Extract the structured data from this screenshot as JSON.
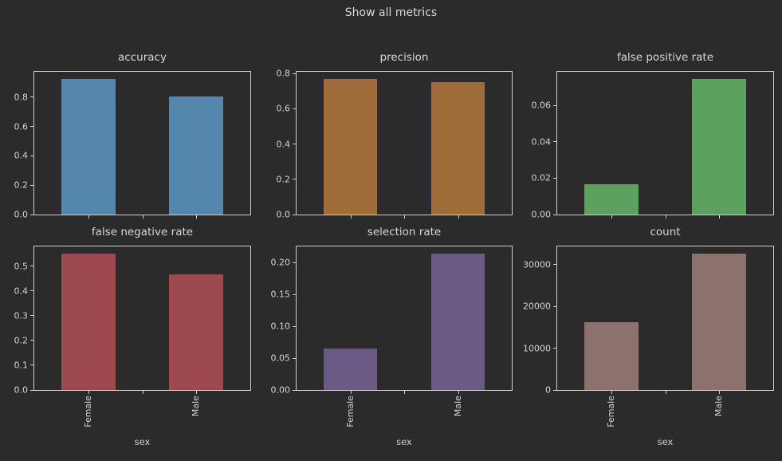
{
  "figure": {
    "title": "Show all metrics",
    "background_color": "#2b2b2b",
    "text_color": "#d2d2d2",
    "spine_color": "#cfcfcf"
  },
  "chart_data": [
    {
      "type": "bar",
      "title": "accuracy",
      "categories": [
        "Female",
        "Male"
      ],
      "values": [
        0.925,
        0.804
      ],
      "bar_color": "#5586ab",
      "ylim": [
        0,
        0.973
      ],
      "ytick_values": [
        0.0,
        0.2,
        0.4,
        0.6,
        0.8
      ],
      "ytick_labels": [
        "0.0",
        "0.2",
        "0.4",
        "0.6",
        "0.8"
      ],
      "xlabel": "",
      "show_x_tick_labels": false,
      "grid": false,
      "legend": "none"
    },
    {
      "type": "bar",
      "title": "precision",
      "categories": [
        "Female",
        "Male"
      ],
      "values": [
        0.77,
        0.753
      ],
      "bar_color": "#a06c3a",
      "ylim": [
        0,
        0.81
      ],
      "ytick_values": [
        0.0,
        0.2,
        0.4,
        0.6,
        0.8
      ],
      "ytick_labels": [
        "0.0",
        "0.2",
        "0.4",
        "0.6",
        "0.8"
      ],
      "xlabel": "",
      "show_x_tick_labels": false,
      "grid": false,
      "legend": "none"
    },
    {
      "type": "bar",
      "title": "false positive rate",
      "categories": [
        "Female",
        "Male"
      ],
      "values": [
        0.0165,
        0.0747
      ],
      "bar_color": "#5aa25d",
      "ylim": [
        0,
        0.0786
      ],
      "ytick_values": [
        0.0,
        0.02,
        0.04,
        0.06
      ],
      "ytick_labels": [
        "0.00",
        "0.02",
        "0.04",
        "0.06"
      ],
      "xlabel": "",
      "show_x_tick_labels": false,
      "grid": false,
      "legend": "none"
    },
    {
      "type": "bar",
      "title": "false negative rate",
      "categories": [
        "Female",
        "Male"
      ],
      "values": [
        0.551,
        0.468
      ],
      "bar_color": "#9c4a4e",
      "ylim": [
        0,
        0.58
      ],
      "ytick_values": [
        0.0,
        0.1,
        0.2,
        0.3,
        0.4,
        0.5
      ],
      "ytick_labels": [
        "0.0",
        "0.1",
        "0.2",
        "0.3",
        "0.4",
        "0.5"
      ],
      "xlabel": "sex",
      "show_x_tick_labels": true,
      "grid": false,
      "legend": "none"
    },
    {
      "type": "bar",
      "title": "selection rate",
      "categories": [
        "Female",
        "Male"
      ],
      "values": [
        0.065,
        0.214
      ],
      "bar_color": "#695b86",
      "ylim": [
        0,
        0.2252
      ],
      "ytick_values": [
        0.0,
        0.05,
        0.1,
        0.15,
        0.2
      ],
      "ytick_labels": [
        "0.00",
        "0.05",
        "0.10",
        "0.15",
        "0.20"
      ],
      "xlabel": "sex",
      "show_x_tick_labels": true,
      "grid": false,
      "legend": "none"
    },
    {
      "type": "bar",
      "title": "count",
      "categories": [
        "Female",
        "Male"
      ],
      "values": [
        16192,
        32650
      ],
      "bar_color": "#8d716c",
      "ylim": [
        0,
        34368
      ],
      "ytick_values": [
        0,
        10000,
        20000,
        30000
      ],
      "ytick_labels": [
        "0",
        "10000",
        "20000",
        "30000"
      ],
      "xlabel": "sex",
      "show_x_tick_labels": true,
      "grid": false,
      "legend": "none"
    }
  ]
}
